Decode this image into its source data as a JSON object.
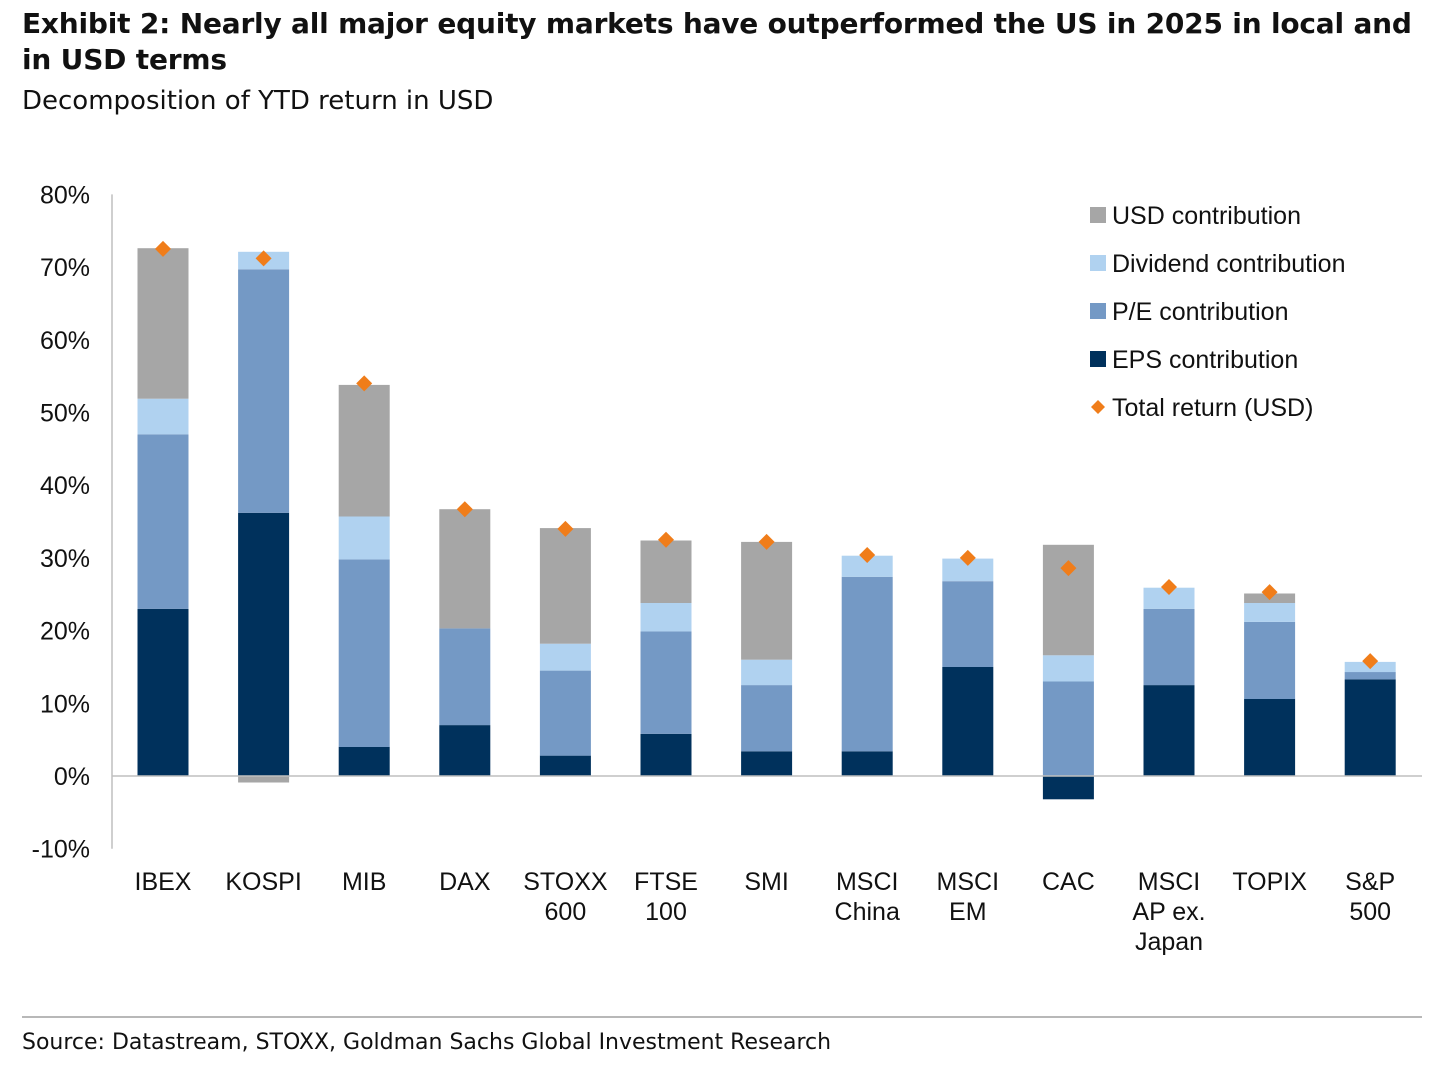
{
  "header": {
    "title": "Exhibit 2:  Nearly all major equity markets have outperformed the US in 2025 in local and in USD terms",
    "subtitle": "Decomposition of YTD return in USD"
  },
  "footer": {
    "source": "Source: Datastream, STOXX, Goldman Sachs Global Investment Research"
  },
  "colors": {
    "usd": "#a6a6a6",
    "dividend": "#b0d2f0",
    "pe": "#7499c5",
    "eps": "#00315c",
    "total": "#f07d1a",
    "axis": "#bfbfbf"
  },
  "chart_data": {
    "type": "bar",
    "stacked": true,
    "categories": [
      [
        "IBEX"
      ],
      [
        "KOSPI"
      ],
      [
        "MIB"
      ],
      [
        "DAX"
      ],
      [
        "STOXX",
        "600"
      ],
      [
        "FTSE",
        "100"
      ],
      [
        "SMI"
      ],
      [
        "MSCI",
        "China"
      ],
      [
        "MSCI",
        "EM"
      ],
      [
        "CAC"
      ],
      [
        "MSCI",
        "AP ex.",
        "Japan"
      ],
      [
        "TOPIX"
      ],
      [
        "S&P",
        "500"
      ]
    ],
    "series": [
      {
        "name": "EPS contribution",
        "key": "eps",
        "values": [
          23.0,
          36.2,
          4.0,
          7.0,
          2.8,
          5.8,
          3.4,
          3.4,
          15.0,
          -3.2,
          12.5,
          10.6,
          13.3
        ]
      },
      {
        "name": "P/E contribution",
        "key": "pe",
        "values": [
          24.0,
          33.5,
          25.8,
          13.3,
          11.7,
          14.1,
          9.1,
          24.0,
          11.8,
          13.0,
          10.5,
          10.6,
          1.0
        ]
      },
      {
        "name": "Dividend contribution",
        "key": "dividend",
        "values": [
          4.9,
          2.4,
          5.9,
          0.0,
          3.7,
          3.9,
          3.5,
          2.9,
          3.1,
          3.6,
          2.9,
          2.6,
          1.4
        ]
      },
      {
        "name": "USD contribution",
        "key": "usd",
        "values": [
          20.7,
          -0.9,
          18.1,
          16.4,
          15.9,
          8.6,
          16.2,
          0.0,
          0.0,
          15.2,
          0.0,
          1.3,
          0.0
        ]
      }
    ],
    "total": {
      "name": "Total return (USD)",
      "values": [
        72.5,
        71.2,
        54.0,
        36.7,
        34.0,
        32.5,
        32.2,
        30.4,
        30.0,
        28.6,
        26.0,
        25.3,
        15.8
      ]
    },
    "legend": [
      {
        "name": "USD contribution",
        "key": "usd",
        "marker": "square"
      },
      {
        "name": "Dividend contribution",
        "key": "dividend",
        "marker": "square"
      },
      {
        "name": "P/E contribution",
        "key": "pe",
        "marker": "square"
      },
      {
        "name": "EPS contribution",
        "key": "eps",
        "marker": "square"
      },
      {
        "name": "Total return (USD)",
        "key": "total",
        "marker": "diamond"
      }
    ],
    "yticks": [
      "80%",
      "70%",
      "60%",
      "50%",
      "40%",
      "30%",
      "20%",
      "10%",
      "0%",
      "-10%"
    ],
    "ytick_values": [
      80,
      70,
      60,
      50,
      40,
      30,
      20,
      10,
      0,
      -10
    ],
    "ylim": [
      -10,
      80
    ],
    "grid": false,
    "legend_position": "top-right"
  }
}
